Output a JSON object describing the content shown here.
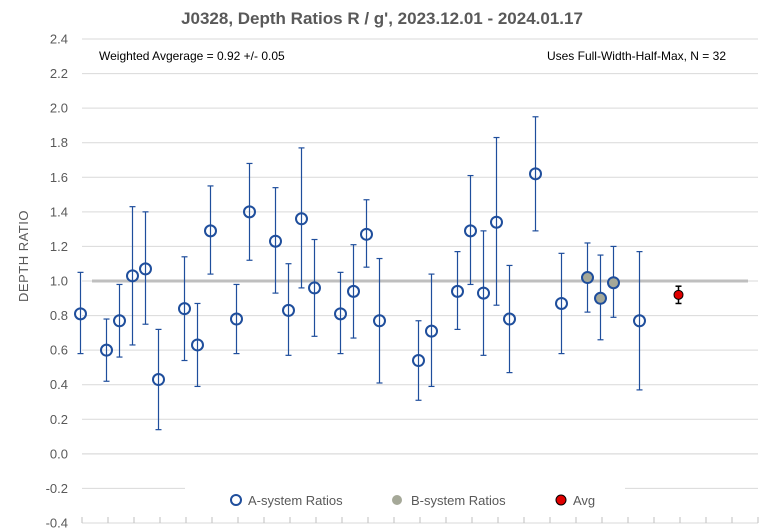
{
  "chart_data": {
    "type": "scatter",
    "title": "J0328, Depth Ratios R / g', 2023.12.01 - 2024.01.17",
    "ylabel": "DEPTH RATIO",
    "xlabel": "",
    "ylim": [
      -0.4,
      2.4
    ],
    "y_ticks": [
      "2.4",
      "2.2",
      "2.0",
      "1.8",
      "1.6",
      "1.4",
      "1.2",
      "1.0",
      "0.8",
      "0.6",
      "0.4",
      "0.2",
      "0.0",
      "-0.2",
      "-0.4"
    ],
    "reference_line": 1.0,
    "grid": "horizontal",
    "legend_position": "bottom",
    "annotations": {
      "left": "Weighted Avgerage = 0.92 +/- 0.05",
      "right": "Uses Full-Width-Half-Max, N = 32"
    },
    "series": [
      {
        "name": "A-system Ratios",
        "color": "#1f4e9c",
        "marker": "open-circle",
        "points": [
          {
            "x": 1,
            "y": 0.81,
            "lo": 0.58,
            "hi": 1.05
          },
          {
            "x": 3,
            "y": 0.6,
            "lo": 0.42,
            "hi": 0.78
          },
          {
            "x": 4,
            "y": 0.77,
            "lo": 0.56,
            "hi": 0.98
          },
          {
            "x": 5,
            "y": 1.03,
            "lo": 0.63,
            "hi": 1.43
          },
          {
            "x": 6,
            "y": 1.07,
            "lo": 0.75,
            "hi": 1.4
          },
          {
            "x": 7,
            "y": 0.43,
            "lo": 0.14,
            "hi": 0.72
          },
          {
            "x": 9,
            "y": 0.84,
            "lo": 0.54,
            "hi": 1.14
          },
          {
            "x": 10,
            "y": 0.63,
            "lo": 0.39,
            "hi": 0.87
          },
          {
            "x": 11,
            "y": 1.29,
            "lo": 1.04,
            "hi": 1.55
          },
          {
            "x": 13,
            "y": 0.78,
            "lo": 0.58,
            "hi": 0.98
          },
          {
            "x": 14,
            "y": 1.4,
            "lo": 1.12,
            "hi": 1.68
          },
          {
            "x": 16,
            "y": 1.23,
            "lo": 0.93,
            "hi": 1.54
          },
          {
            "x": 17,
            "y": 0.83,
            "lo": 0.57,
            "hi": 1.1
          },
          {
            "x": 18,
            "y": 1.36,
            "lo": 0.96,
            "hi": 1.77
          },
          {
            "x": 19,
            "y": 0.96,
            "lo": 0.68,
            "hi": 1.24
          },
          {
            "x": 21,
            "y": 0.81,
            "lo": 0.58,
            "hi": 1.05
          },
          {
            "x": 22,
            "y": 0.94,
            "lo": 0.67,
            "hi": 1.21
          },
          {
            "x": 23,
            "y": 1.27,
            "lo": 1.08,
            "hi": 1.47
          },
          {
            "x": 24,
            "y": 0.77,
            "lo": 0.41,
            "hi": 1.13
          },
          {
            "x": 27,
            "y": 0.54,
            "lo": 0.31,
            "hi": 0.77
          },
          {
            "x": 28,
            "y": 0.71,
            "lo": 0.39,
            "hi": 1.04
          },
          {
            "x": 30,
            "y": 0.94,
            "lo": 0.72,
            "hi": 1.17
          },
          {
            "x": 31,
            "y": 1.29,
            "lo": 0.98,
            "hi": 1.61
          },
          {
            "x": 32,
            "y": 0.93,
            "lo": 0.57,
            "hi": 1.29
          },
          {
            "x": 33,
            "y": 1.34,
            "lo": 0.86,
            "hi": 1.83
          },
          {
            "x": 34,
            "y": 0.78,
            "lo": 0.47,
            "hi": 1.09
          },
          {
            "x": 36,
            "y": 1.62,
            "lo": 1.29,
            "hi": 1.95
          },
          {
            "x": 38,
            "y": 0.87,
            "lo": 0.58,
            "hi": 1.16
          },
          {
            "x": 40,
            "y": 1.02,
            "lo": 0.82,
            "hi": 1.22
          },
          {
            "x": 41,
            "y": 0.9,
            "lo": 0.66,
            "hi": 1.15
          },
          {
            "x": 42,
            "y": 0.99,
            "lo": 0.79,
            "hi": 1.2
          },
          {
            "x": 44,
            "y": 0.77,
            "lo": 0.37,
            "hi": 1.17
          }
        ]
      },
      {
        "name": "B-system Ratios",
        "color": "#a5a898",
        "marker": "filled-circle",
        "points": [
          {
            "x": 40,
            "y": 1.02
          },
          {
            "x": 41,
            "y": 0.9
          },
          {
            "x": 42,
            "y": 0.99
          }
        ]
      },
      {
        "name": "Avg",
        "color": "#e00000",
        "marker": "filled-circle",
        "points": [
          {
            "x": 47,
            "y": 0.92,
            "lo": 0.87,
            "hi": 0.97
          }
        ]
      }
    ]
  }
}
